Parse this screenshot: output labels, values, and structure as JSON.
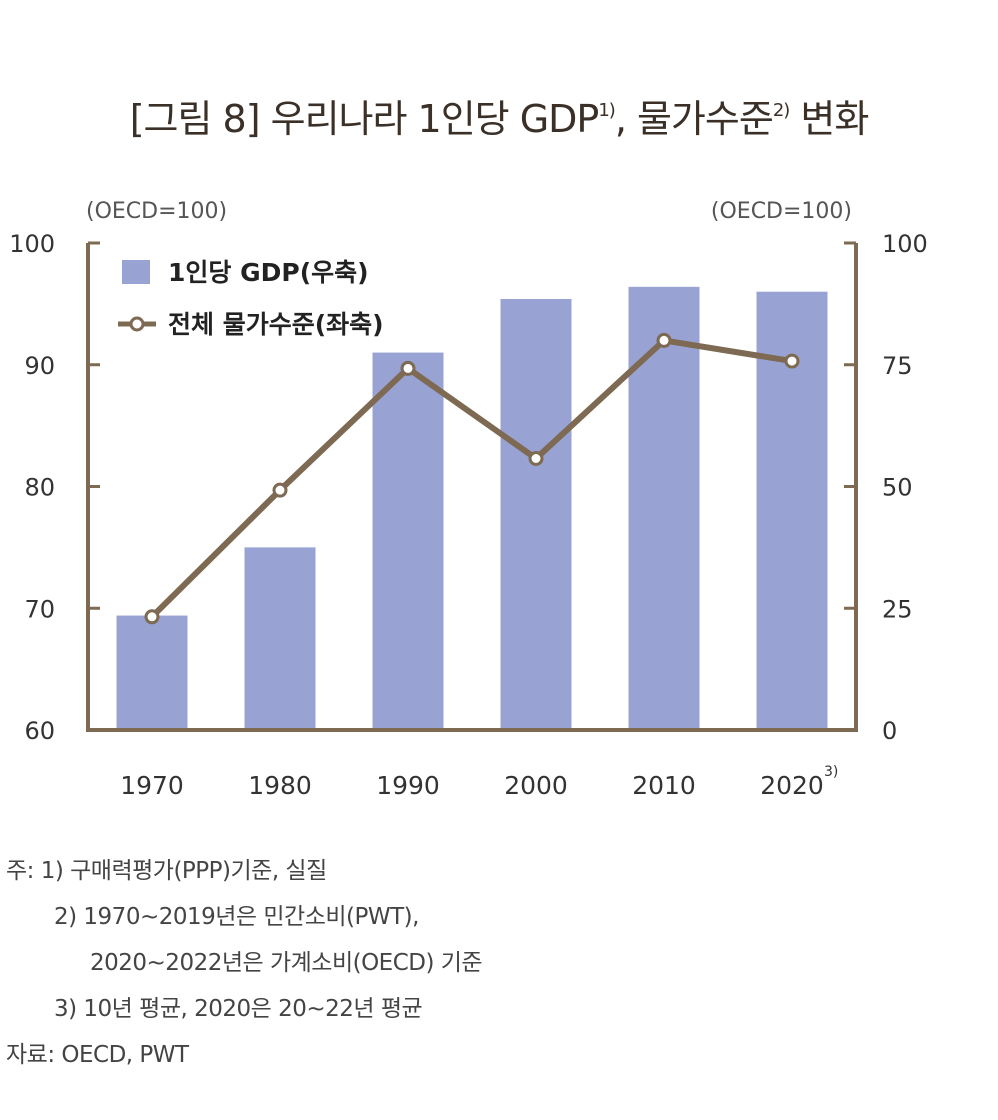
{
  "title": {
    "text": "[그림 8] 우리나라 1인당 GDP",
    "sup1": "1)",
    "mid": ", 물가수준",
    "sup2": "2)",
    "end": " 변화"
  },
  "chart_data": {
    "type": "bar",
    "categories": [
      "1970",
      "1980",
      "1990",
      "2000",
      "2010",
      "2020"
    ],
    "category_note": "3)",
    "left_unit": "(OECD=100)",
    "right_unit": "(OECD=100)",
    "left_axis": {
      "range": [
        60,
        100
      ],
      "ticks": [
        "60",
        "70",
        "80",
        "90",
        "100"
      ]
    },
    "right_axis": {
      "range": [
        0,
        100
      ],
      "ticks": [
        "0",
        "25",
        "50",
        "75",
        "100"
      ]
    },
    "series": [
      {
        "name": "1인당 GDP(우축)",
        "type": "bar",
        "axis": "right",
        "values": [
          23.5,
          37.5,
          77.5,
          88.5,
          91,
          90
        ],
        "color": "#98a3d3"
      },
      {
        "name": "전체 물가수준(좌축)",
        "type": "line",
        "axis": "left",
        "values": [
          69.3,
          79.7,
          89.7,
          82.3,
          92,
          90.3
        ],
        "color": "#7e6a52"
      }
    ],
    "legend_position": "top-left",
    "grid": false
  },
  "notes": [
    "주: 1) 구매력평가(PPP)기준, 실질",
    "2) 1970~2019년은 민간소비(PWT),",
    "2020~2022년은 가계소비(OECD) 기준",
    "3) 10년 평균, 2020은 20~22년 평균",
    "자료: OECD, PWT"
  ]
}
